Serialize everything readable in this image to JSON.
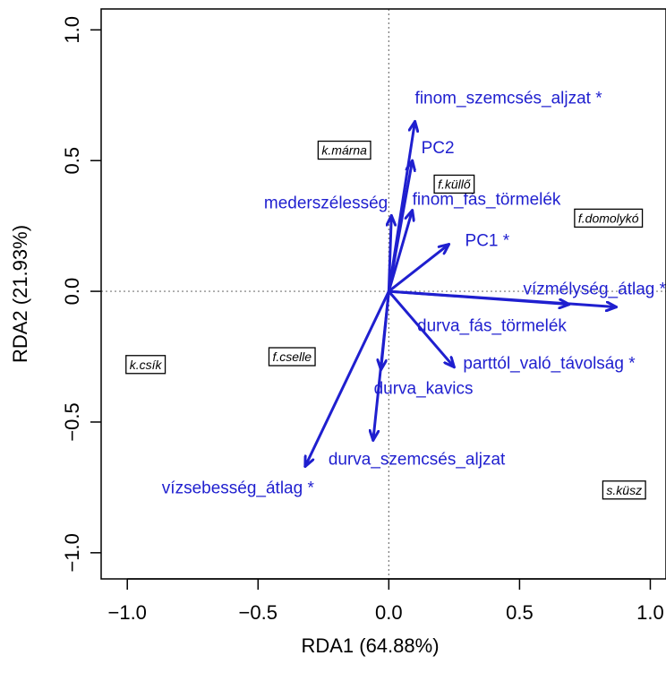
{
  "chart_data": {
    "type": "scatter",
    "subtype": "rda-biplot",
    "title": "",
    "xlabel": "RDA1 (64.88%)",
    "ylabel": "RDA2 (21.93%)",
    "xlim": [
      -1.1,
      1.06
    ],
    "ylim": [
      -1.1,
      1.08
    ],
    "xticks": [
      -1.0,
      -0.5,
      0.0,
      0.5,
      1.0
    ],
    "yticks": [
      -1.0,
      -0.5,
      0.0,
      0.5,
      1.0
    ],
    "xtick_labels": [
      "−1.0",
      "−0.5",
      "0.0",
      "0.5",
      "1.0"
    ],
    "ytick_labels": [
      "−1.0",
      "−0.5",
      "0.0",
      "0.5",
      "1.0"
    ],
    "reference_lines": {
      "x": 0,
      "y": 0,
      "style": "dotted"
    },
    "arrow_color": "#1f1fcf",
    "arrows": [
      {
        "label": "finom_szemcsés_aljzat *",
        "x": 0.1,
        "y": 0.65
      },
      {
        "label": "PC2",
        "x": 0.09,
        "y": 0.5
      },
      {
        "label": "finom_fás_törmelék",
        "x": 0.09,
        "y": 0.31
      },
      {
        "label": "mederszélesség",
        "x": 0.01,
        "y": 0.29
      },
      {
        "label": "PC1 *",
        "x": 0.23,
        "y": 0.18
      },
      {
        "label": "vízmélység_átlag *",
        "x": 0.87,
        "y": -0.06
      },
      {
        "label": "durva_fás_törmelék",
        "x": 0.69,
        "y": -0.05
      },
      {
        "label": "parttól_való_távolság *",
        "x": 0.25,
        "y": -0.29
      },
      {
        "label": "durva_kavics",
        "x": -0.03,
        "y": -0.3
      },
      {
        "label": "durva_szemcsés_aljzat",
        "x": -0.06,
        "y": -0.57
      },
      {
        "label": "vízsebesség_átlag *",
        "x": -0.32,
        "y": -0.67
      }
    ],
    "species": [
      {
        "label": "k.márna",
        "x": -0.17,
        "y": 0.54
      },
      {
        "label": "f.küllő",
        "x": 0.25,
        "y": 0.41
      },
      {
        "label": "f.domolykó",
        "x": 0.84,
        "y": 0.28
      },
      {
        "label": "f.cselle",
        "x": -0.37,
        "y": -0.25
      },
      {
        "label": "k.csík",
        "x": -0.93,
        "y": -0.28
      },
      {
        "label": "s.küsz",
        "x": 0.9,
        "y": -0.76
      }
    ]
  }
}
